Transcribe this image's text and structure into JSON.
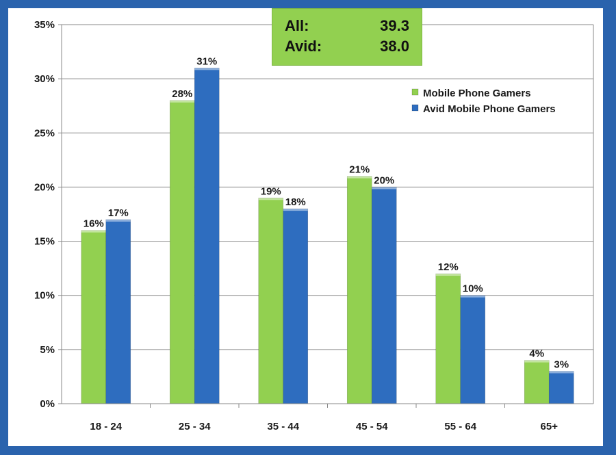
{
  "infobox": {
    "rows": [
      {
        "label": "All:",
        "value": "39.3"
      },
      {
        "label": "Avid:",
        "value": "38.0"
      }
    ]
  },
  "colors": {
    "frame": "#2a63ad",
    "series_green": "#92d050",
    "series_blue": "#2e6dbf",
    "grid": "#8a8a8a"
  },
  "chart_data": {
    "type": "bar",
    "categories": [
      "18 - 24",
      "25 - 34",
      "35 - 44",
      "45 - 54",
      "55 - 64",
      "65+"
    ],
    "series": [
      {
        "name": "Mobile Phone Gamers",
        "values": [
          16,
          28,
          19,
          21,
          12,
          4
        ],
        "labels": [
          "16%",
          "28%",
          "19%",
          "21%",
          "12%",
          "4%"
        ]
      },
      {
        "name": "Avid Mobile Phone Gamers",
        "values": [
          17,
          31,
          18,
          20,
          10,
          3
        ],
        "labels": [
          "17%",
          "31%",
          "18%",
          "20%",
          "10%",
          "3%"
        ]
      }
    ],
    "ylim": [
      0,
      35
    ],
    "yticks": [
      "0%",
      "5%",
      "10%",
      "15%",
      "20%",
      "25%",
      "30%",
      "35%"
    ],
    "legend_position": "top-right",
    "grid": true
  }
}
